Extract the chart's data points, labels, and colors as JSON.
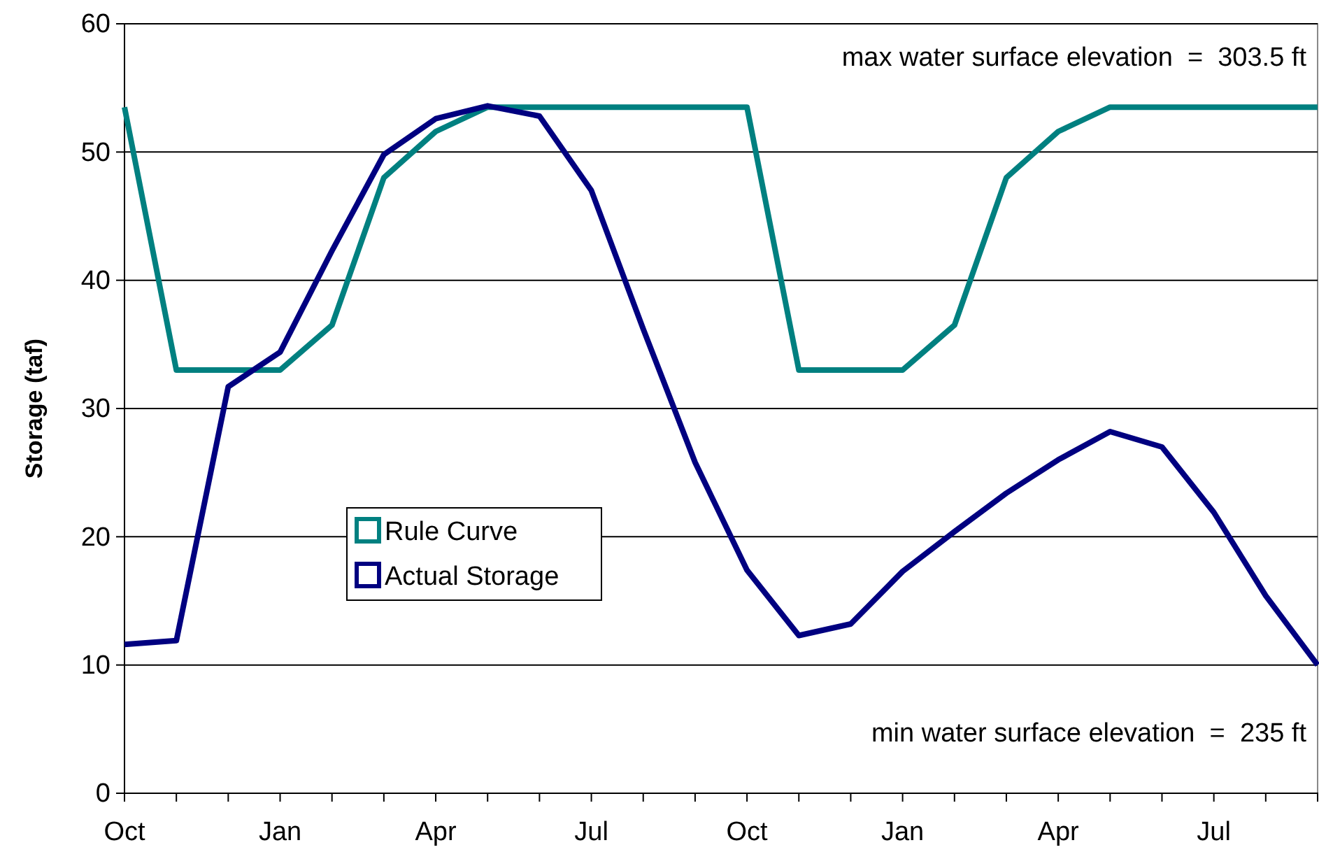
{
  "chart_data": {
    "type": "line",
    "ylabel": "Storage (taf)",
    "categories": [
      "Oct",
      null,
      null,
      "Jan",
      null,
      null,
      "Apr",
      null,
      null,
      "Jul",
      null,
      null,
      "Oct",
      null,
      null,
      "Jan",
      null,
      null,
      "Apr",
      null,
      null,
      "Jul",
      null,
      null
    ],
    "ylim": [
      0,
      60
    ],
    "yticks": [
      0,
      10,
      20,
      30,
      40,
      50,
      60
    ],
    "grid": "y",
    "legend": "left",
    "series": [
      {
        "name": "Rule Curve",
        "color": "#008080",
        "values": [
          53.5,
          33,
          33,
          33,
          36.5,
          48,
          51.6,
          53.5,
          53.5,
          53.5,
          53.5,
          53.5,
          53.5,
          33,
          33,
          33,
          36.5,
          48,
          51.6,
          53.5,
          53.5,
          53.5,
          53.5,
          53.5
        ]
      },
      {
        "name": "Actual Storage",
        "color": "#000080",
        "values": [
          11.6,
          11.9,
          31.7,
          34.4,
          42.3,
          49.8,
          52.6,
          53.6,
          52.8,
          47.0,
          36.2,
          25.8,
          17.4,
          12.3,
          13.2,
          17.3,
          20.4,
          23.4,
          26.0,
          28.2,
          27.0,
          21.9,
          15.4,
          10.0
        ]
      }
    ],
    "annotations": [
      "max water surface elevation  =  303.5 ft",
      "min water surface elevation  =  235 ft"
    ]
  }
}
